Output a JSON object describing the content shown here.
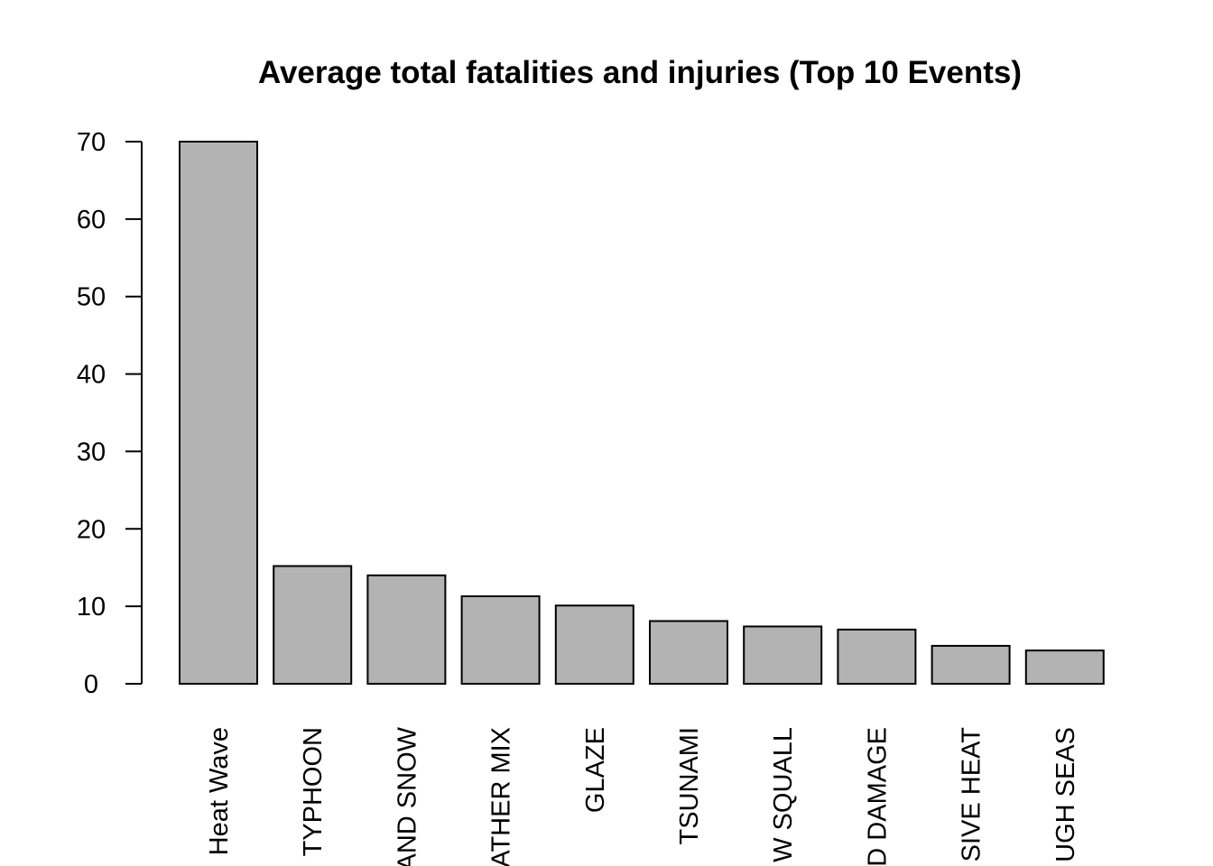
{
  "chart_data": {
    "type": "bar",
    "title": "Average total fatalities and injuries (Top 10 Events)",
    "xlabel": "",
    "ylabel": "",
    "categories": [
      "Heat Wave",
      "TYPHOON",
      "AND SNOW",
      "ATHER MIX",
      "GLAZE",
      "TSUNAMI",
      "W SQUALL",
      "D DAMAGE",
      "SIVE HEAT",
      "UGH SEAS"
    ],
    "values": [
      70,
      15.2,
      14,
      11.3,
      10.1,
      8.1,
      7.4,
      7.0,
      4.9,
      4.3
    ],
    "ylim": [
      0,
      70
    ],
    "yticks": [
      0,
      10,
      20,
      30,
      40,
      50,
      60,
      70
    ],
    "grid": false,
    "bar_color": "#b3b3b3",
    "bar_border_color": "#000000"
  }
}
